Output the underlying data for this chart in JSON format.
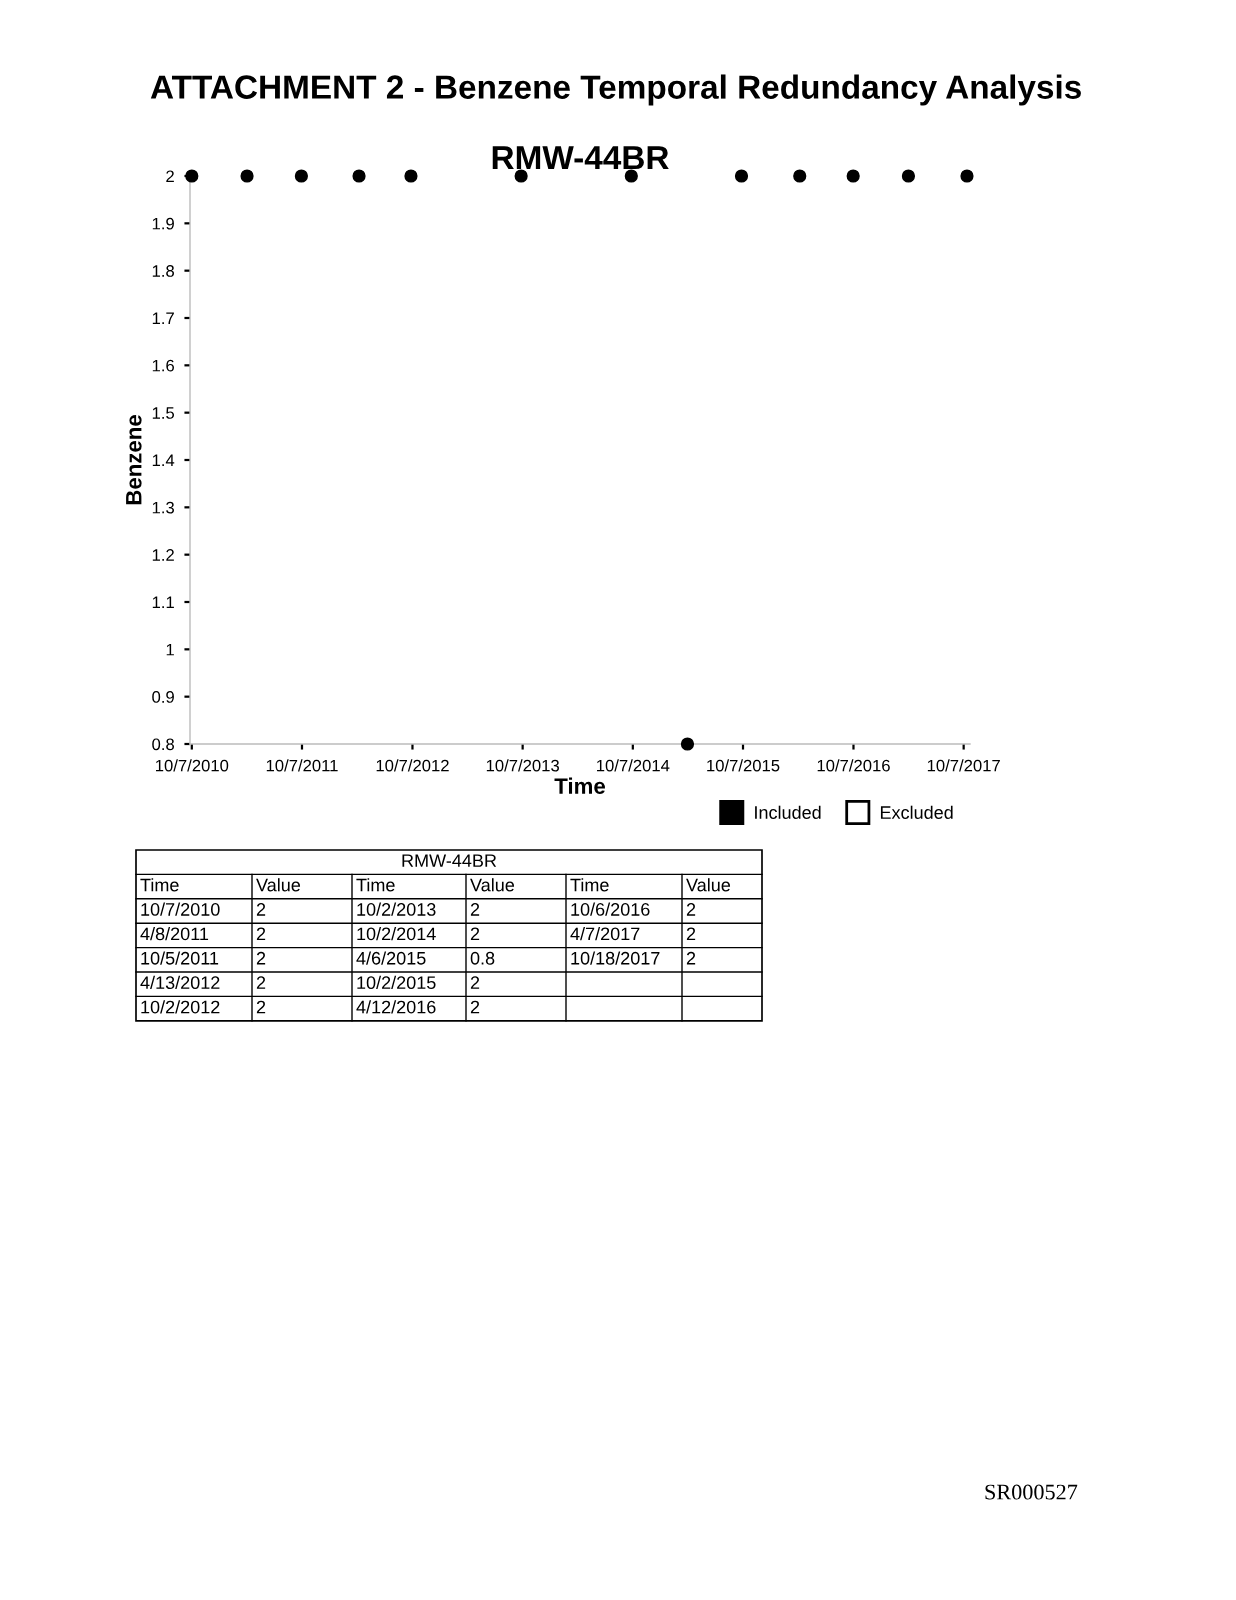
{
  "chart_data": {
    "type": "scatter",
    "title": "ATTACHMENT 2 - Benzene Temporal Redundancy Analysis",
    "subtitle": "RMW-44BR",
    "xlabel": "Time",
    "ylabel": "Benzene",
    "x": [
      "2010-10-07",
      "2011-04-08",
      "2011-10-05",
      "2012-04-13",
      "2012-10-02",
      "2013-10-02",
      "2014-10-02",
      "2015-04-06",
      "2015-10-02",
      "2016-04-12",
      "2016-10-06",
      "2017-04-07",
      "2017-10-18"
    ],
    "series": [
      {
        "name": "Included",
        "color": "#000000",
        "values": [
          2,
          2,
          2,
          2,
          2,
          2,
          2,
          0.8,
          2,
          2,
          2,
          2,
          2
        ]
      },
      {
        "name": "Excluded",
        "color": "#ffffff",
        "values": [
          null,
          null,
          null,
          null,
          null,
          null,
          null,
          null,
          null,
          null,
          null,
          null,
          null
        ]
      }
    ],
    "xlim": [
      "2010-10-01",
      "2017-10-28"
    ],
    "xticks": [
      {
        "value": "2010-10-07",
        "label": "10/7/2010"
      },
      {
        "value": "2011-10-07",
        "label": "10/7/2011"
      },
      {
        "value": "2012-10-07",
        "label": "10/7/2012"
      },
      {
        "value": "2013-10-07",
        "label": "10/7/2013"
      },
      {
        "value": "2014-10-07",
        "label": "10/7/2014"
      },
      {
        "value": "2015-10-07",
        "label": "10/7/2015"
      },
      {
        "value": "2016-10-07",
        "label": "10/7/2016"
      },
      {
        "value": "2017-10-07",
        "label": "10/7/2017"
      }
    ],
    "ylim": [
      0.8,
      2
    ],
    "yticks": [
      0.8,
      0.9,
      1,
      1.1,
      1.2,
      1.3,
      1.4,
      1.5,
      1.6,
      1.7,
      1.8,
      1.9,
      2
    ],
    "marker": "circle",
    "legend": "bottom right",
    "grid": false,
    "annotations": [
      "SR000527",
      "Time",
      "Value",
      "Time",
      "Value",
      "Time",
      "Value",
      "10/7/2010",
      "2",
      "4/8/2011",
      "2",
      "10/5/2011",
      "2",
      "4/13/2012",
      "2",
      "10/2/2012",
      "2",
      "10/2/2013",
      "2",
      "10/2/2014",
      "2",
      "4/6/2015",
      "0.8",
      "10/2/2015",
      "2",
      "4/12/2016",
      "2",
      "10/6/2016",
      "2",
      "4/7/2017",
      "2",
      "10/18/2017",
      "2"
    ]
  }
}
